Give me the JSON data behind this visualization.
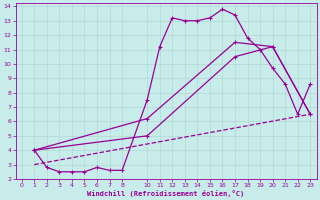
{
  "xlabel": "Windchill (Refroidissement éolien,°C)",
  "background_color": "#c8ece9",
  "line_color": "#990099",
  "grid_color": "#b0d8d5",
  "xlim": [
    -0.5,
    23.5
  ],
  "ylim": [
    2,
    14.2
  ],
  "xticks": [
    0,
    1,
    2,
    3,
    4,
    5,
    6,
    7,
    8,
    10,
    11,
    12,
    13,
    14,
    15,
    16,
    17,
    18,
    19,
    20,
    21,
    22,
    23
  ],
  "yticks": [
    2,
    3,
    4,
    5,
    6,
    7,
    8,
    9,
    10,
    11,
    12,
    13,
    14
  ],
  "line1_x": [
    1,
    2,
    3,
    4,
    5,
    6,
    7,
    8,
    10,
    11,
    12,
    13,
    14,
    15,
    16,
    17,
    18,
    19,
    20,
    21,
    22,
    23
  ],
  "line1_y": [
    4.0,
    2.8,
    2.5,
    2.5,
    2.5,
    2.8,
    2.6,
    2.6,
    7.5,
    11.2,
    13.2,
    13.0,
    13.0,
    13.2,
    13.8,
    13.4,
    11.8,
    11.0,
    9.7,
    8.6,
    6.5,
    8.6
  ],
  "line2_x": [
    1,
    10,
    17,
    20,
    23
  ],
  "line2_y": [
    4.0,
    6.2,
    11.5,
    11.2,
    6.5
  ],
  "line3_x": [
    1,
    10,
    17,
    20,
    23
  ],
  "line3_y": [
    4.0,
    5.0,
    10.5,
    11.2,
    6.5
  ],
  "line4_x": [
    1,
    23
  ],
  "line4_y": [
    3.0,
    6.5
  ]
}
